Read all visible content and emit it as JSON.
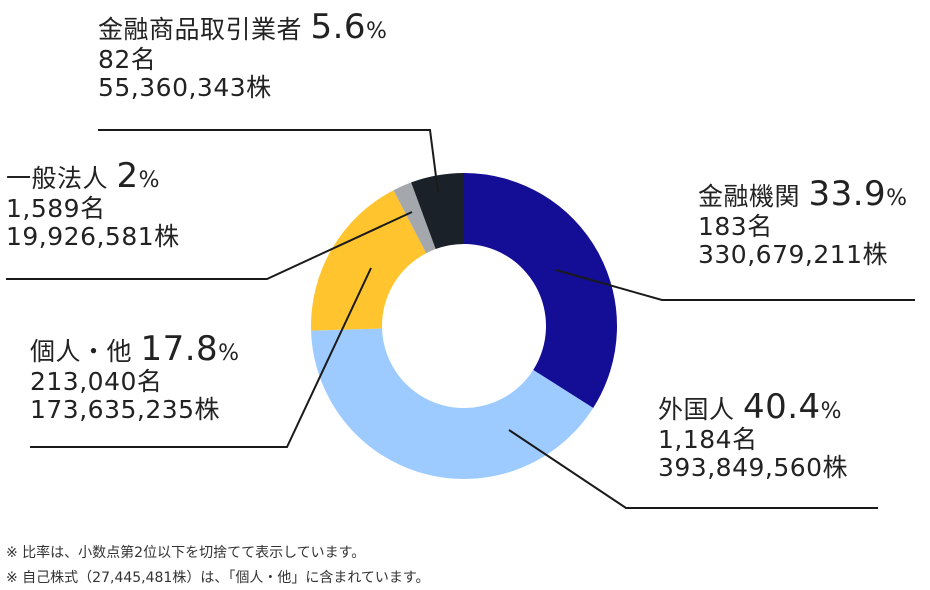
{
  "chart_data": {
    "type": "pie",
    "categories": [
      "金融機関",
      "外国人",
      "個人・他",
      "一般法人",
      "金融商品取引業者"
    ],
    "values": [
      33.9,
      40.4,
      17.8,
      2.0,
      5.6
    ],
    "value_unit": "%",
    "holders": [
      "183名",
      "1,184名",
      "213,040名",
      "1,589名",
      "82名"
    ],
    "shares": [
      "330,679,211株",
      "393,849,560株",
      "173,635,235株",
      "19,926,581株",
      "55,360,343株"
    ],
    "colors": [
      "#140d96",
      "#9ecbff",
      "#ffc42e",
      "#a4a7ab",
      "#1b2128"
    ],
    "line_color": "#1a1a1a",
    "start": "12 o'clock, clockwise"
  },
  "notes": [
    "※ 比率は、小数点第2位以下を切捨てて表示しています。",
    "※ 自己株式（27,445,481株）は、「個人・他」に含まれています。"
  ]
}
